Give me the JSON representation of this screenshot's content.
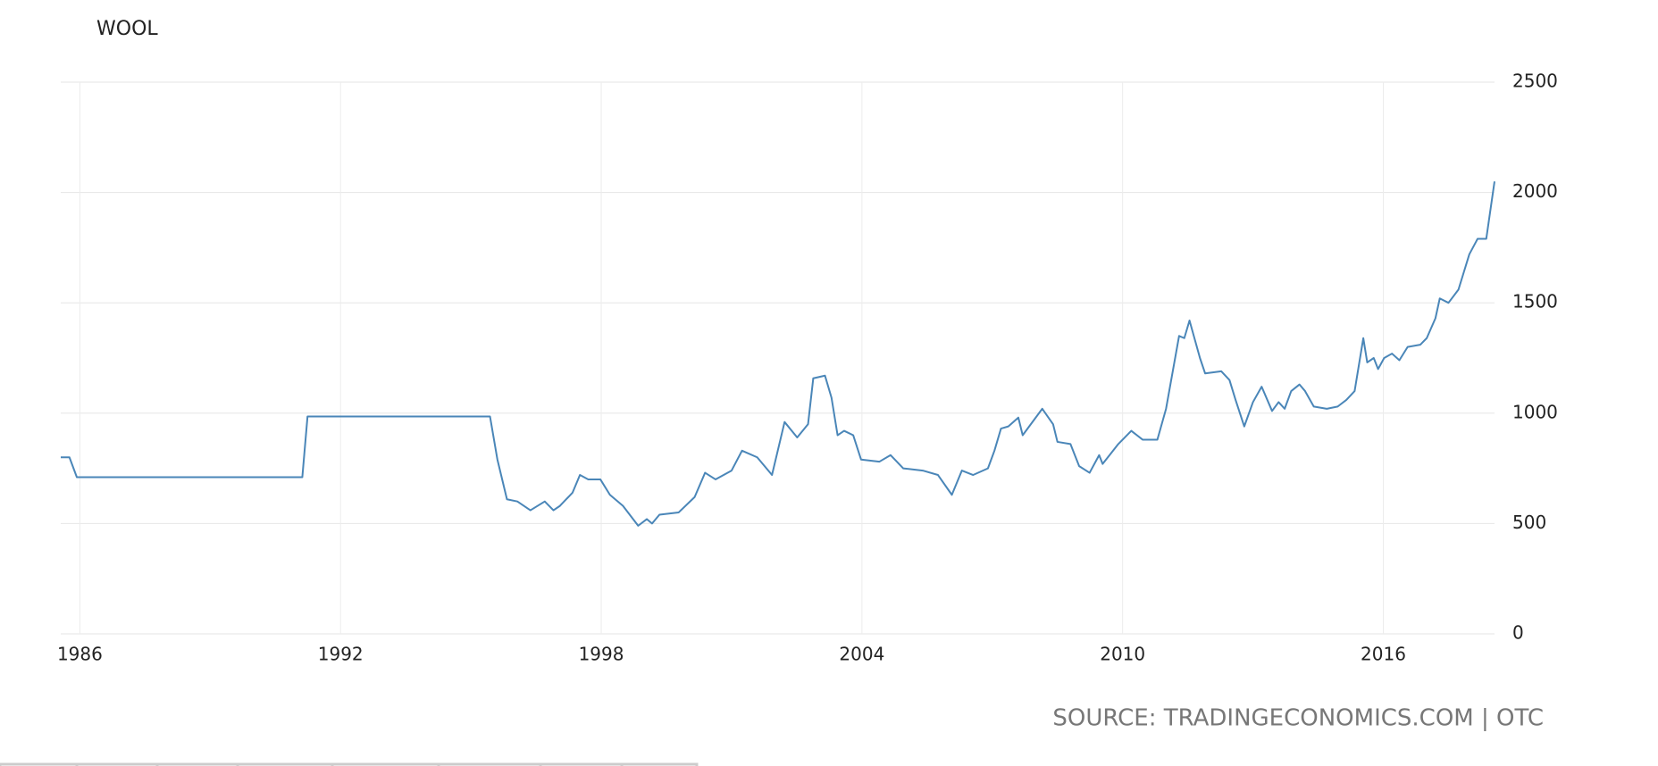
{
  "chart_data": {
    "type": "line",
    "title": "WOOL",
    "source": "SOURCE: TRADINGECONOMICS.COM | OTC",
    "color": "#4a86b8",
    "grid": true,
    "x": [
      1985.56,
      1985.76,
      1985.93,
      1991.12,
      1991.24,
      1995.44,
      1995.61,
      1995.83,
      1996.07,
      1996.37,
      1996.7,
      1996.9,
      1997.05,
      1997.34,
      1997.51,
      1997.7,
      1997.98,
      1998.2,
      1998.5,
      1998.85,
      1999.05,
      1999.17,
      1999.34,
      1999.78,
      2000.15,
      2000.39,
      2000.63,
      2001.0,
      2001.24,
      2001.59,
      2001.93,
      2002.22,
      2002.51,
      2002.76,
      2002.88,
      2003.15,
      2003.3,
      2003.44,
      2003.59,
      2003.8,
      2003.98,
      2004.4,
      2004.66,
      2004.95,
      2005.4,
      2005.75,
      2006.07,
      2006.3,
      2006.56,
      2006.9,
      2007.05,
      2007.2,
      2007.37,
      2007.6,
      2007.7,
      2008.15,
      2008.4,
      2008.5,
      2008.8,
      2009.0,
      2009.24,
      2009.46,
      2009.54,
      2009.9,
      2010.2,
      2010.46,
      2010.8,
      2011.0,
      2011.3,
      2011.42,
      2011.54,
      2011.78,
      2011.9,
      2012.27,
      2012.46,
      2012.6,
      2012.8,
      2013.0,
      2013.2,
      2013.44,
      2013.59,
      2013.73,
      2013.88,
      2014.07,
      2014.2,
      2014.4,
      2014.7,
      2014.95,
      2015.15,
      2015.34,
      2015.54,
      2015.63,
      2015.78,
      2015.88,
      2016.02,
      2016.2,
      2016.37,
      2016.56,
      2016.85,
      2017.0,
      2017.2,
      2017.3,
      2017.5,
      2017.73,
      2017.98,
      2018.17,
      2018.37,
      2018.56
    ],
    "values": [
      800,
      800,
      710,
      710,
      985,
      985,
      790,
      610,
      600,
      560,
      600,
      560,
      580,
      640,
      720,
      700,
      700,
      630,
      580,
      490,
      520,
      500,
      540,
      550,
      620,
      730,
      700,
      740,
      830,
      800,
      720,
      960,
      890,
      950,
      1158,
      1170,
      1070,
      900,
      920,
      900,
      790,
      780,
      810,
      750,
      740,
      720,
      630,
      740,
      720,
      750,
      830,
      930,
      940,
      980,
      900,
      1020,
      950,
      870,
      860,
      760,
      730,
      810,
      770,
      860,
      920,
      880,
      880,
      1020,
      1350,
      1340,
      1420,
      1250,
      1180,
      1190,
      1150,
      1060,
      940,
      1050,
      1120,
      1010,
      1050,
      1020,
      1100,
      1130,
      1100,
      1030,
      1020,
      1030,
      1060,
      1100,
      1340,
      1230,
      1250,
      1200,
      1250,
      1270,
      1240,
      1300,
      1310,
      1340,
      1430,
      1520,
      1500,
      1560,
      1720,
      1790,
      1790,
      2050
    ],
    "xlim": [
      1985.56,
      2018.56
    ],
    "xticks": [
      1986,
      1992,
      1998,
      2004,
      2010,
      2016
    ],
    "ylim": [
      0,
      2500
    ],
    "yticks": [
      0,
      500,
      1000,
      1500,
      2000,
      2500
    ]
  }
}
